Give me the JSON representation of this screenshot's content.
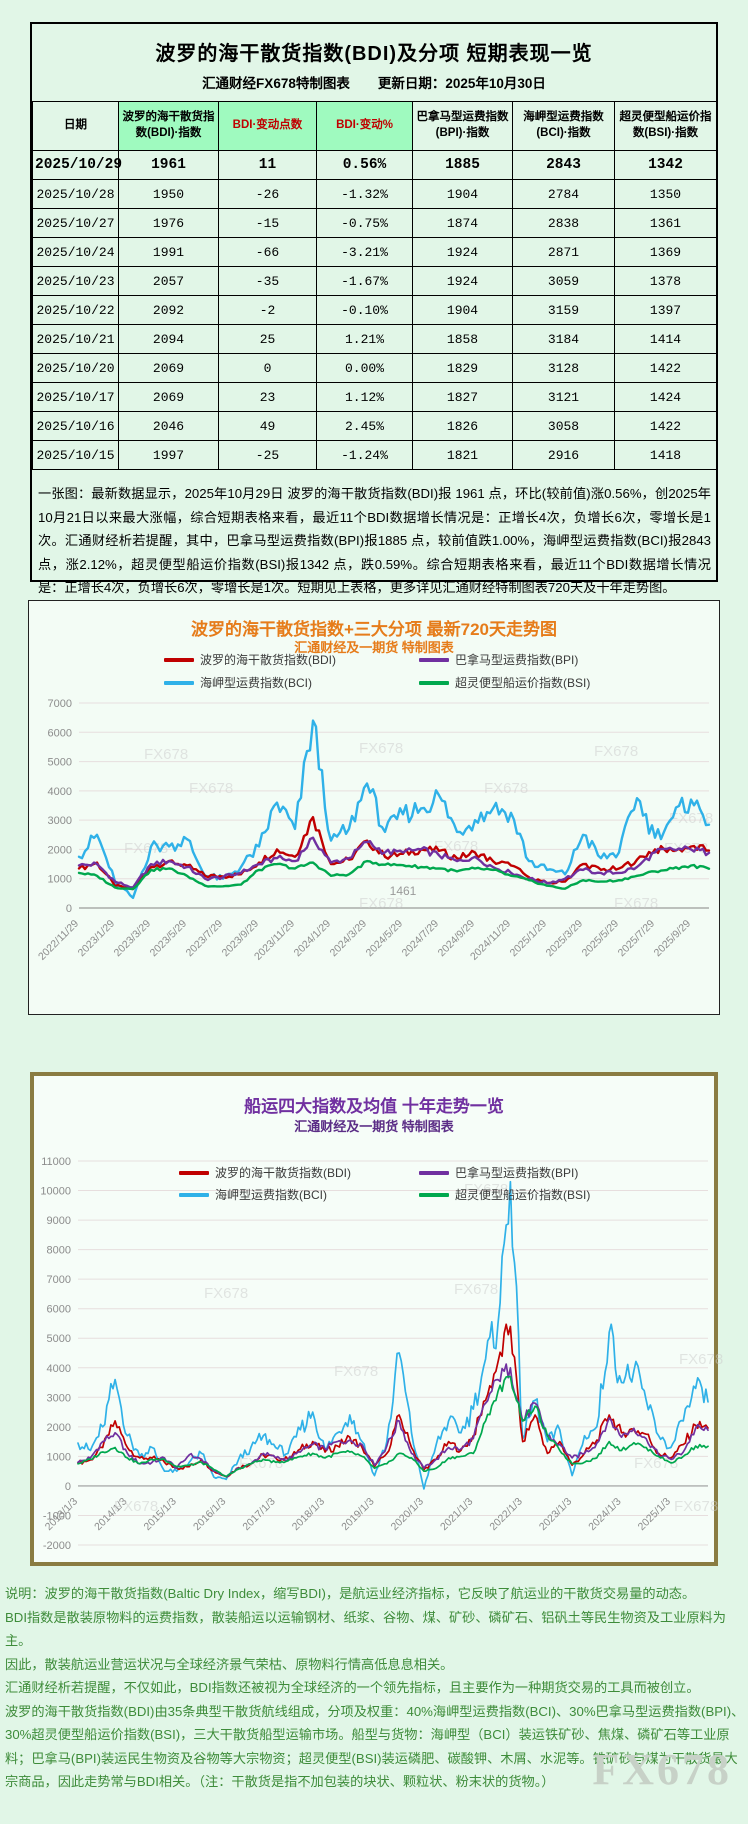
{
  "page": {
    "watermark": "FX678"
  },
  "table_section": {
    "title": "波罗的海干散货指数(BDI)及分项  短期表现一览",
    "subtitle_left": "汇通财经FX678特制图表",
    "subtitle_right": "更新日期：2025年10月30日",
    "columns": [
      {
        "label": "日期",
        "highlight": false,
        "red": false
      },
      {
        "label": "波罗的海干散货指数(BDI)·指数",
        "highlight": true,
        "red": false
      },
      {
        "label": "BDI·变动点数",
        "highlight": true,
        "red": true
      },
      {
        "label": "BDI·变动%",
        "highlight": true,
        "red": true
      },
      {
        "label": "巴拿马型运费指数(BPI)·指数",
        "highlight": false,
        "red": false
      },
      {
        "label": "海岬型运费指数(BCI)·指数",
        "highlight": false,
        "red": false
      },
      {
        "label": "超灵便型船运价指数(BSI)·指数",
        "highlight": false,
        "red": false
      }
    ],
    "rows": [
      [
        "2025/10/29",
        "1961",
        "11",
        "0.56%",
        "1885",
        "2843",
        "1342"
      ],
      [
        "2025/10/28",
        "1950",
        "-26",
        "-1.32%",
        "1904",
        "2784",
        "1350"
      ],
      [
        "2025/10/27",
        "1976",
        "-15",
        "-0.75%",
        "1874",
        "2838",
        "1361"
      ],
      [
        "2025/10/24",
        "1991",
        "-66",
        "-3.21%",
        "1924",
        "2871",
        "1369"
      ],
      [
        "2025/10/23",
        "2057",
        "-35",
        "-1.67%",
        "1924",
        "3059",
        "1378"
      ],
      [
        "2025/10/22",
        "2092",
        "-2",
        "-0.10%",
        "1904",
        "3159",
        "1397"
      ],
      [
        "2025/10/21",
        "2094",
        "25",
        "1.21%",
        "1858",
        "3184",
        "1414"
      ],
      [
        "2025/10/20",
        "2069",
        "0",
        "0.00%",
        "1829",
        "3128",
        "1422"
      ],
      [
        "2025/10/17",
        "2069",
        "23",
        "1.12%",
        "1827",
        "3121",
        "1424"
      ],
      [
        "2025/10/16",
        "2046",
        "49",
        "2.45%",
        "1826",
        "3058",
        "1422"
      ],
      [
        "2025/10/15",
        "1997",
        "-25",
        "-1.24%",
        "1821",
        "2916",
        "1418"
      ]
    ],
    "note": "一张图：最新数据显示，2025年10月29日 波罗的海干散货指数(BDI)报 1961 点，环比(较前值)涨0.56%，创2025年10月21日以来最大涨幅，综合短期表格来看，最近11个BDI数据增长情况是：正增长4次，负增长6次，零增长是1次。汇通财经析若提醒，其中，巴拿马型运费指数(BPI)报1885 点，较前值跌1.00%，海岬型运费指数(BCI)报2843 点，涨2.12%，超灵便型船运价指数(BSI)报1342 点，跌0.59%。综合短期表格来看，最近11个BDI数据增长情况是：正增长4次，负增长6次，零增长是1次。短期见上表格，更多详见汇通财经特制图表720天及十年走势图。"
  },
  "chart_data": [
    {
      "type": "line",
      "title": "波罗的海干散货指数+三大分项  最新720天走势图",
      "subtitle": "汇通财经及一期货  特制图表",
      "ylim": [
        0,
        7000
      ],
      "ytick_step": 1000,
      "grid": true,
      "legend_position": "top",
      "x": [
        "2022/11",
        "2022/12",
        "2023/1",
        "2023/2",
        "2023/3",
        "2023/4",
        "2023/5",
        "2023/6",
        "2023/7",
        "2023/8",
        "2023/9",
        "2023/10",
        "2023/11",
        "2023/12",
        "2024/1",
        "2024/2",
        "2024/3",
        "2024/4",
        "2024/5",
        "2024/6",
        "2024/7",
        "2024/8",
        "2024/9",
        "2024/10",
        "2024/11",
        "2024/12",
        "2025/1",
        "2025/2",
        "2025/3",
        "2025/4",
        "2025/5",
        "2025/6",
        "2025/7",
        "2025/8",
        "2025/9",
        "2025/10"
      ],
      "xticks": [
        "2022/11/29",
        "2023/1/29",
        "2023/3/29",
        "2023/5/29",
        "2023/7/29",
        "2023/9/29",
        "2023/11/29",
        "2024/1/29",
        "2024/3/29",
        "2024/5/29",
        "2024/7/29",
        "2024/9/29",
        "2024/11/29",
        "2025/1/29",
        "2025/3/29",
        "2025/5/29",
        "2025/7/29",
        "2025/9/29"
      ],
      "series": [
        {
          "name": "波罗的海干散货指数(BDI)",
          "color": "#c00000",
          "values": [
            1350,
            1550,
            750,
            650,
            1400,
            1600,
            1450,
            1100,
            1080,
            1150,
            1550,
            2000,
            1750,
            3100,
            1500,
            1650,
            2300,
            1750,
            1850,
            2000,
            1950,
            1700,
            1900,
            1600,
            1450,
            1050,
            850,
            900,
            1500,
            1300,
            1350,
            1650,
            2000,
            1950,
            2100,
            1961
          ]
        },
        {
          "name": "巴拿马型运费指数(BPI)",
          "color": "#7030a0",
          "values": [
            1450,
            1500,
            900,
            700,
            1500,
            1600,
            1400,
            1000,
            1050,
            1200,
            1500,
            1700,
            1600,
            2400,
            1550,
            1700,
            2250,
            1900,
            1900,
            2000,
            1800,
            1600,
            1750,
            1400,
            1200,
            1000,
            850,
            1000,
            1300,
            1200,
            1200,
            1400,
            1900,
            2000,
            2000,
            1885
          ]
        },
        {
          "name": "海岬型运费指数(BCI)",
          "color": "#2fb1e8",
          "values": [
            1750,
            2500,
            900,
            350,
            2100,
            2100,
            2350,
            1100,
            1000,
            1400,
            2100,
            3600,
            2700,
            6400,
            2300,
            2700,
            4250,
            2600,
            3200,
            3400,
            3850,
            2600,
            3000,
            3400,
            3250,
            1600,
            1300,
            1150,
            2500,
            1700,
            1900,
            3750,
            2400,
            3100,
            3700,
            2843
          ]
        },
        {
          "name": "超灵便型船运价指数(BSI)",
          "color": "#00a84e",
          "values": [
            1200,
            1100,
            700,
            650,
            1300,
            1350,
            1100,
            760,
            740,
            800,
            1300,
            1500,
            1350,
            1550,
            1100,
            1150,
            1600,
            1480,
            1461,
            1400,
            1350,
            1250,
            1350,
            1300,
            1100,
            950,
            760,
            660,
            950,
            900,
            950,
            1100,
            1250,
            1350,
            1450,
            1342
          ]
        }
      ],
      "annotation": {
        "text": "1461",
        "x": "2024/5",
        "y": 1461
      }
    },
    {
      "type": "line",
      "title": "船运四大指数及均值 十年走势一览",
      "subtitle": "汇通财经及一期货 特制图表",
      "ylim": [
        -2000,
        11000
      ],
      "ytick_step": 1000,
      "grid": true,
      "legend_position": "top",
      "x": [
        "2013/1",
        "2013/4",
        "2013/7",
        "2013/10",
        "2014/1",
        "2014/4",
        "2014/7",
        "2014/10",
        "2015/1",
        "2015/4",
        "2015/7",
        "2015/10",
        "2016/1",
        "2016/4",
        "2016/7",
        "2016/10",
        "2017/1",
        "2017/4",
        "2017/7",
        "2017/10",
        "2018/1",
        "2018/4",
        "2018/7",
        "2018/10",
        "2019/1",
        "2019/4",
        "2019/7",
        "2019/10",
        "2020/1",
        "2020/4",
        "2020/7",
        "2020/10",
        "2021/1",
        "2021/4",
        "2021/7",
        "2021/10",
        "2022/1",
        "2022/4",
        "2022/7",
        "2022/10",
        "2023/1",
        "2023/4",
        "2023/7",
        "2023/10",
        "2024/1",
        "2024/4",
        "2024/7",
        "2024/10",
        "2025/1",
        "2025/4",
        "2025/7",
        "2025/10"
      ],
      "xticks": [
        "2013/1/3",
        "2014/1/3",
        "2015/1/3",
        "2016/1/3",
        "2017/1/3",
        "2018/1/3",
        "2019/1/3",
        "2020/1/3",
        "2021/1/3",
        "2022/1/3",
        "2023/1/3",
        "2024/1/3",
        "2025/1/3"
      ],
      "series": [
        {
          "name": "波罗的海干散货指数(BDI)",
          "color": "#c00000",
          "values": [
            780,
            880,
            1300,
            2200,
            1300,
            950,
            950,
            800,
            600,
            650,
            900,
            500,
            310,
            620,
            750,
            1050,
            950,
            900,
            1250,
            1500,
            1150,
            1350,
            1650,
            1300,
            650,
            1100,
            2400,
            1300,
            550,
            900,
            1500,
            1200,
            1700,
            2900,
            4200,
            5400,
            1500,
            2400,
            1100,
            1500,
            700,
            1100,
            1550,
            2400,
            1800,
            1900,
            1750,
            1100,
            950,
            1400,
            2050,
            1961
          ]
        },
        {
          "name": "巴拿马型运费指数(BPI)",
          "color": "#7030a0",
          "values": [
            800,
            950,
            1500,
            1800,
            1100,
            750,
            800,
            950,
            600,
            1050,
            900,
            500,
            320,
            600,
            750,
            1100,
            950,
            900,
            1150,
            1400,
            1250,
            1500,
            1550,
            1400,
            700,
            1350,
            2200,
            1100,
            600,
            900,
            1300,
            1250,
            1600,
            2800,
            3600,
            4000,
            2200,
            2800,
            1700,
            1400,
            950,
            1100,
            1450,
            2300,
            1650,
            1950,
            1600,
            1050,
            900,
            1150,
            1950,
            1885
          ]
        },
        {
          "name": "海岬型运费指数(BCI)",
          "color": "#2fb1e8",
          "values": [
            1450,
            1200,
            2000,
            3600,
            1700,
            1000,
            1300,
            500,
            500,
            800,
            1100,
            300,
            220,
            900,
            1300,
            1700,
            1300,
            1100,
            1900,
            2500,
            1200,
            1800,
            2400,
            1500,
            350,
            1500,
            4500,
            1800,
            -100,
            1400,
            2200,
            1800,
            2600,
            4300,
            5500,
            10300,
            1600,
            2900,
            1500,
            1900,
            350,
            1700,
            2000,
            5200,
            3500,
            3900,
            2900,
            1700,
            1300,
            2200,
            3300,
            2843
          ]
        },
        {
          "name": "超灵便型船运价指数(BSI)",
          "color": "#00a84e",
          "values": [
            750,
            900,
            1150,
            1300,
            950,
            750,
            900,
            900,
            650,
            700,
            800,
            550,
            320,
            570,
            750,
            900,
            800,
            850,
            1000,
            1100,
            950,
            1100,
            1150,
            1000,
            600,
            750,
            1100,
            950,
            500,
            600,
            950,
            1000,
            1100,
            2200,
            3200,
            3700,
            2200,
            2700,
            1700,
            1200,
            750,
            800,
            950,
            1500,
            1200,
            1461,
            1300,
            1000,
            780,
            1000,
            1350,
            1342
          ]
        }
      ]
    }
  ],
  "footer": {
    "lines": [
      "说明：波罗的海干散货指数(Baltic Dry Index，缩写BDI)，是航运业经济指标，它反映了航运业的干散货交易量的动态。",
      "BDI指数是散装原物料的运费指数，散装船运以运输钢材、纸浆、谷物、煤、矿砂、磷矿石、铝矾土等民生物资及工业原料为主。",
      "因此，散装航运业营运状况与全球经济景气荣枯、原物料行情高低息息相关。",
      "汇通财经析若提醒，不仅如此，BDI指数还被视为全球经济的一个领先指标，且主要作为一种期货交易的工具而被创立。",
      "波罗的海干散货指数(BDI)由35条典型干散货航线组成，分项及权重：40%海岬型运费指数(BCI)、30%巴拿马型运费指数(BPI)、30%超灵便型船运价指数(BSI)，三大干散货船型运输市场。船型与货物：海岬型（BCI）装运铁矿砂、焦煤、磷矿石等工业原料；巴拿马(BPI)装运民生物资及谷物等大宗物资；超灵便型(BSI)装运磷肥、碳酸钾、木屑、水泥等。铁矿砂与煤为干散货最大宗商品，因此走势常与BDI相关。（注：干散货是指不加包装的块状、颗粒状、粉末状的货物。）"
    ],
    "watermark": "FX678"
  }
}
